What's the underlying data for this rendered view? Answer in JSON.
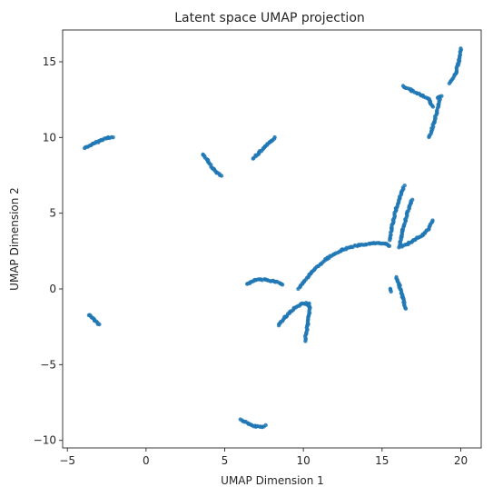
{
  "chart_data": {
    "type": "scatter",
    "title": "Latent space UMAP projection",
    "xlabel": "UMAP Dimension 1",
    "ylabel": "UMAP Dimension 2",
    "xlim": [
      -5.3,
      21.3
    ],
    "ylim": [
      -10.5,
      17.1
    ],
    "xticks": [
      -5,
      0,
      5,
      10,
      15,
      20
    ],
    "yticks": [
      -10,
      -5,
      0,
      5,
      10,
      15
    ],
    "grid": false,
    "point_color": "#1f77b4",
    "curves": [
      [
        [
          -3.9,
          9.3
        ],
        [
          -3.4,
          9.55
        ],
        [
          -2.9,
          9.8
        ],
        [
          -2.4,
          10.0
        ],
        [
          -2.1,
          10.0
        ]
      ],
      [
        [
          3.6,
          8.9
        ],
        [
          3.9,
          8.5
        ],
        [
          4.2,
          8.0
        ],
        [
          4.5,
          7.7
        ],
        [
          4.8,
          7.5
        ]
      ],
      [
        [
          6.8,
          8.6
        ],
        [
          7.2,
          9.0
        ],
        [
          7.6,
          9.4
        ],
        [
          8.0,
          9.8
        ],
        [
          8.2,
          10.0
        ]
      ],
      [
        [
          -3.6,
          -1.7
        ],
        [
          -3.3,
          -2.0
        ],
        [
          -3.0,
          -2.35
        ]
      ],
      [
        [
          6.0,
          -8.6
        ],
        [
          6.5,
          -8.9
        ],
        [
          7.0,
          -9.1
        ],
        [
          7.4,
          -9.1
        ],
        [
          7.6,
          -9.0
        ]
      ],
      [
        [
          6.4,
          0.3
        ],
        [
          7.0,
          0.6
        ],
        [
          7.6,
          0.6
        ],
        [
          8.2,
          0.5
        ],
        [
          8.7,
          0.3
        ]
      ],
      [
        [
          8.4,
          -2.4
        ],
        [
          8.9,
          -1.8
        ],
        [
          9.4,
          -1.3
        ],
        [
          9.9,
          -1.0
        ],
        [
          10.4,
          -1.0
        ]
      ],
      [
        [
          10.1,
          -3.4
        ],
        [
          10.3,
          -2.3
        ],
        [
          10.4,
          -1.2
        ],
        [
          10.2,
          -0.9
        ]
      ],
      [
        [
          9.7,
          0.0
        ],
        [
          10.5,
          1.1
        ],
        [
          11.5,
          2.0
        ],
        [
          12.5,
          2.6
        ],
        [
          13.5,
          2.9
        ],
        [
          14.5,
          3.0
        ],
        [
          15.2,
          3.0
        ],
        [
          15.5,
          2.8
        ]
      ],
      [
        [
          15.9,
          0.8
        ],
        [
          16.1,
          0.2
        ],
        [
          16.3,
          -0.5
        ],
        [
          16.5,
          -1.3
        ]
      ],
      [
        [
          15.5,
          0.0
        ],
        [
          15.6,
          -0.2
        ]
      ],
      [
        [
          15.5,
          3.2
        ],
        [
          15.6,
          4.0
        ],
        [
          15.9,
          5.3
        ],
        [
          16.2,
          6.3
        ],
        [
          16.4,
          6.8
        ]
      ],
      [
        [
          16.1,
          2.7
        ],
        [
          16.3,
          3.8
        ],
        [
          16.6,
          5.0
        ],
        [
          16.9,
          5.9
        ]
      ],
      [
        [
          16.3,
          2.8
        ],
        [
          17.0,
          3.2
        ],
        [
          17.6,
          3.6
        ],
        [
          18.0,
          4.0
        ],
        [
          18.2,
          4.5
        ]
      ],
      [
        [
          16.3,
          13.4
        ],
        [
          16.9,
          13.1
        ],
        [
          17.5,
          12.8
        ],
        [
          18.0,
          12.5
        ],
        [
          18.2,
          12.0
        ]
      ],
      [
        [
          18.0,
          10.0
        ],
        [
          18.3,
          11.0
        ],
        [
          18.6,
          12.2
        ],
        [
          18.7,
          12.7
        ]
      ],
      [
        [
          18.5,
          12.6
        ],
        [
          18.8,
          12.7
        ]
      ],
      [
        [
          19.3,
          13.6
        ],
        [
          19.7,
          14.3
        ],
        [
          19.9,
          15.1
        ],
        [
          20.0,
          15.9
        ]
      ]
    ]
  }
}
